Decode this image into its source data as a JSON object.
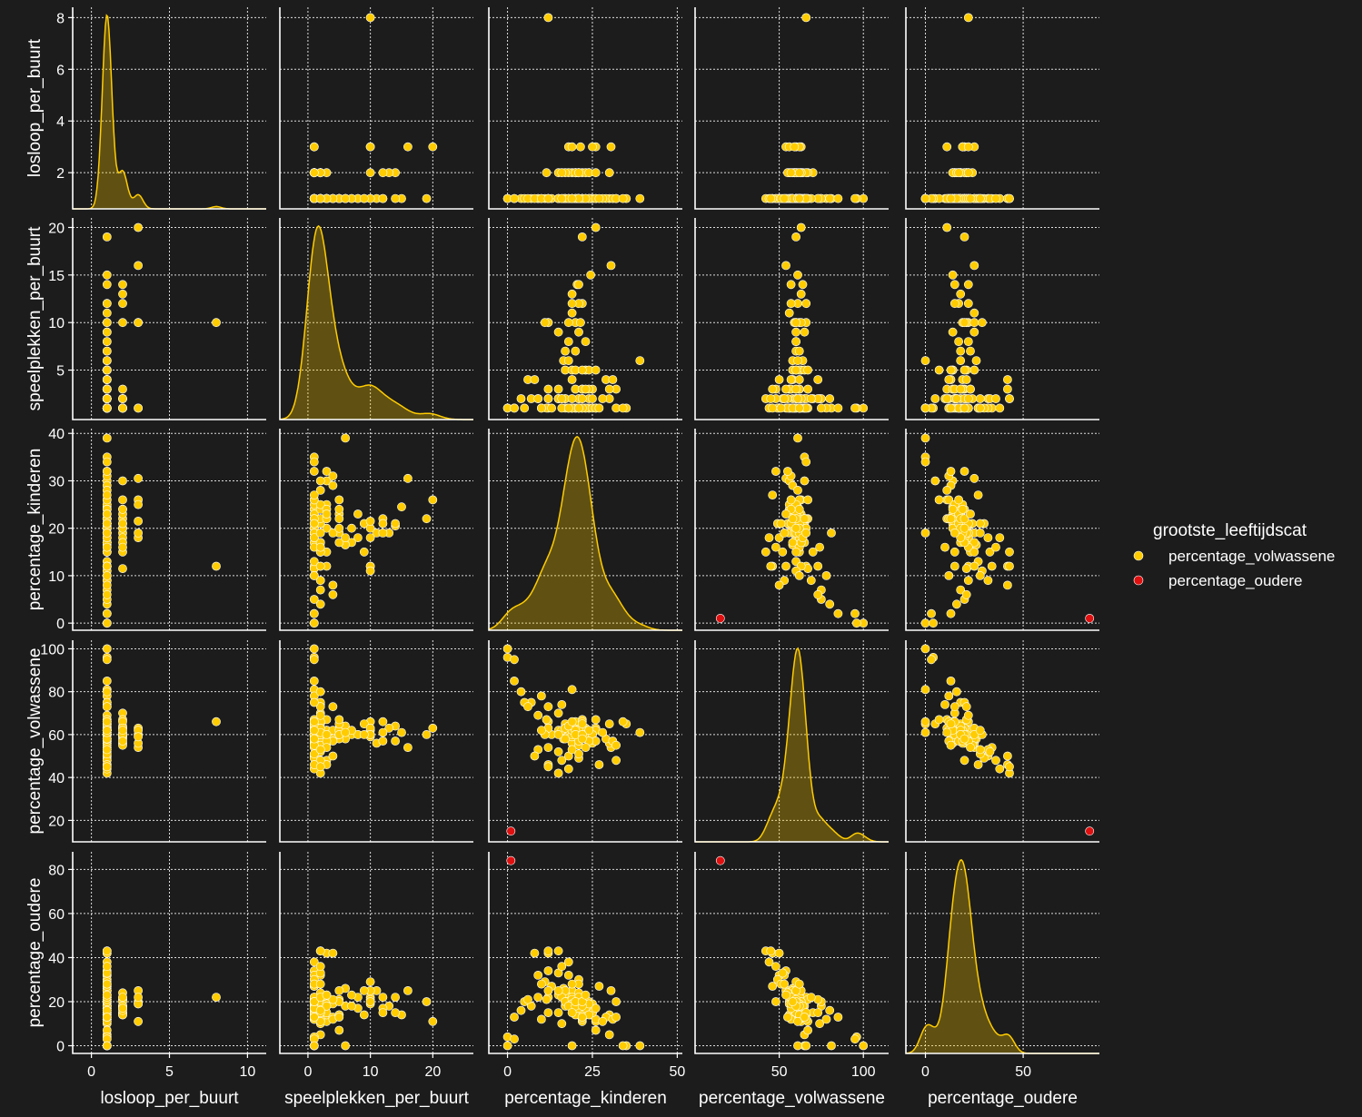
{
  "chart_data": {
    "type": "scatter",
    "kind": "pairplot",
    "variables": [
      "losloop_per_buurt",
      "speelplekken_per_buurt",
      "percentage_kinderen",
      "percentage_volwassene",
      "percentage_oudere"
    ],
    "ticks": {
      "losloop_per_buurt": [
        0,
        5,
        10
      ],
      "speelplekken_per_buurt": [
        0,
        10,
        20
      ],
      "percentage_kinderen": [
        0,
        25,
        50
      ],
      "percentage_volwassene": [
        50,
        100
      ],
      "percentage_oudere": [
        0,
        50
      ]
    },
    "row_ticks": {
      "losloop_per_buurt": [
        2,
        4,
        6,
        8
      ],
      "speelplekken_per_buurt": [
        5,
        10,
        15,
        20
      ],
      "percentage_kinderen": [
        0,
        10,
        20,
        30,
        40
      ],
      "percentage_volwassene": [
        20,
        40,
        60,
        80,
        100
      ],
      "percentage_oudere": [
        0,
        20,
        40,
        60,
        80
      ]
    },
    "ranges": {
      "losloop_per_buurt": [
        -1.2,
        11.2
      ],
      "speelplekken_per_buurt": [
        -4.5,
        26.5
      ],
      "percentage_kinderen": [
        -5.5,
        51.5
      ],
      "percentage_volwassene": [
        0,
        115
      ],
      "percentage_oudere": [
        -10,
        89
      ]
    },
    "row_ranges": {
      "losloop_per_buurt": [
        0.6,
        8.4
      ],
      "speelplekken_per_buurt": [
        -0.2,
        21.0
      ],
      "percentage_kinderen": [
        -1.5,
        41.0
      ],
      "percentage_volwassene": [
        10,
        104
      ],
      "percentage_oudere": [
        -3.5,
        88
      ]
    },
    "hue": "grootste_leeftijdscat",
    "legend_position": "right",
    "series": [
      {
        "name": "percentage_volwassene",
        "color": "#ffcc00",
        "points": [
          [
            8,
            10,
            12,
            66,
            22
          ],
          [
            3,
            20,
            26,
            63,
            11
          ],
          [
            3,
            16,
            30.5,
            54,
            25
          ],
          [
            1,
            19,
            22,
            60,
            20
          ],
          [
            1,
            15,
            24.5,
            61,
            14
          ],
          [
            1,
            14,
            20.5,
            57,
            22
          ],
          [
            1,
            11,
            19,
            56,
            25
          ],
          [
            1,
            9,
            21,
            65,
            14
          ],
          [
            1,
            8,
            18,
            60,
            22
          ],
          [
            1,
            7,
            17,
            60,
            23
          ],
          [
            1,
            6,
            16.5,
            58,
            26
          ],
          [
            1,
            5,
            23,
            63,
            14
          ],
          [
            1,
            3,
            20,
            62,
            18
          ],
          [
            1,
            2,
            21,
            58,
            21
          ],
          [
            1,
            1,
            22,
            62,
            16
          ],
          [
            1,
            1,
            12,
            54,
            34
          ],
          [
            1,
            2,
            9,
            53,
            32
          ],
          [
            1,
            3,
            32,
            48,
            20
          ],
          [
            1,
            1,
            0,
            100,
            0
          ],
          [
            1,
            1,
            19,
            81,
            0
          ],
          [
            1,
            2,
            16,
            74,
            10
          ],
          [
            1,
            1,
            17,
            65,
            18
          ],
          [
            1,
            1,
            20,
            63,
            17
          ],
          [
            1,
            1,
            23,
            62,
            15
          ],
          [
            1,
            1,
            24,
            56,
            20
          ],
          [
            1,
            1,
            18,
            50,
            32
          ],
          [
            1,
            1,
            21,
            49,
            30
          ],
          [
            1,
            2,
            15,
            52,
            33
          ],
          [
            1,
            3,
            22,
            67,
            11
          ],
          [
            2,
            14,
            21,
            64,
            15
          ],
          [
            2,
            13,
            19,
            63,
            18
          ],
          [
            2,
            12,
            22,
            61,
            17
          ],
          [
            2,
            10,
            20,
            59,
            21
          ],
          [
            2,
            3,
            30,
            56,
            14
          ],
          [
            2,
            2,
            15,
            70,
            15
          ],
          [
            2,
            1,
            11.5,
            67,
            21
          ],
          [
            2,
            1,
            18,
            60,
            22
          ],
          [
            2,
            1,
            24,
            58,
            18
          ],
          [
            2,
            1,
            20,
            66,
            14
          ],
          [
            2,
            2,
            17,
            63,
            20
          ],
          [
            2,
            1,
            23,
            59,
            18
          ],
          [
            3,
            10,
            21.5,
            60,
            19
          ],
          [
            3,
            10,
            18,
            62,
            20
          ],
          [
            3,
            1,
            25,
            56,
            19
          ],
          [
            3,
            1,
            19,
            59,
            22
          ],
          [
            1,
            2,
            22,
            62,
            16
          ],
          [
            1,
            1,
            13,
            60,
            27
          ],
          [
            2,
            2,
            24,
            60,
            16
          ],
          [
            1,
            1,
            19,
            64,
            17
          ],
          [
            1,
            3,
            25,
            60,
            15
          ],
          [
            1,
            2,
            30,
            65,
            5
          ],
          [
            1,
            1,
            10,
            78,
            12
          ],
          [
            1,
            5,
            17,
            58,
            25
          ],
          [
            2,
            2,
            21,
            55,
            24
          ],
          [
            1,
            2,
            7,
            75,
            18
          ],
          [
            1,
            4,
            29,
            58,
            13
          ],
          [
            1,
            3,
            15,
            62,
            23
          ],
          [
            1,
            2,
            22,
            66,
            12
          ],
          [
            1,
            1,
            26,
            62,
            12
          ],
          [
            2,
            1,
            16,
            62,
            22
          ],
          [
            1,
            10,
            12,
            63,
            25
          ],
          [
            1,
            10,
            11,
            60,
            29
          ],
          [
            1,
            12,
            21,
            57,
            22
          ],
          [
            1,
            4,
            31,
            57,
            12
          ],
          [
            1,
            8,
            23,
            60,
            17
          ],
          [
            1,
            2,
            25,
            60,
            15
          ],
          [
            2,
            1,
            26,
            57,
            17
          ],
          [
            1,
            1,
            21,
            62,
            17
          ],
          [
            1,
            2,
            17,
            63,
            20
          ],
          [
            1,
            5,
            19,
            60,
            21
          ],
          [
            1,
            3,
            24,
            57,
            19
          ],
          [
            1,
            4,
            19,
            62,
            19
          ],
          [
            1,
            5,
            24,
            62,
            14
          ],
          [
            1,
            6,
            18,
            64,
            18
          ],
          [
            1,
            7,
            20,
            62,
            18
          ],
          [
            1,
            5,
            20,
            60,
            20
          ],
          [
            1,
            9,
            15,
            60,
            25
          ],
          [
            1,
            12,
            19,
            66,
            15
          ],
          [
            1,
            2,
            28,
            61,
            11
          ],
          [
            1,
            3,
            22,
            60,
            18
          ],
          [
            1,
            5,
            22,
            65,
            13
          ],
          [
            1,
            1,
            32,
            55,
            13
          ],
          [
            1,
            1,
            22,
            58,
            20
          ],
          [
            1,
            2,
            12,
            73,
            15
          ],
          [
            1,
            2,
            4,
            80,
            16
          ],
          [
            1,
            1,
            5,
            75,
            20
          ],
          [
            1,
            1,
            2,
            85,
            13
          ],
          [
            1,
            4,
            6,
            73,
            21
          ],
          [
            1,
            2,
            9,
            69,
            22
          ],
          [
            1,
            5,
            26,
            67,
            7
          ],
          [
            1,
            1,
            35,
            65,
            0
          ],
          [
            1,
            2,
            15,
            42,
            43
          ],
          [
            1,
            3,
            12,
            46,
            42
          ],
          [
            1,
            1,
            18,
            44,
            38
          ],
          [
            1,
            4,
            8,
            50,
            42
          ],
          [
            1,
            3,
            23,
            54,
            23
          ],
          [
            1,
            1,
            0,
            96,
            4
          ],
          [
            1,
            1,
            2,
            95,
            3
          ],
          [
            1,
            6,
            39,
            61,
            0
          ],
          [
            1,
            1,
            34,
            66,
            0
          ],
          [
            1,
            2,
            16,
            48,
            36
          ],
          [
            1,
            1,
            27,
            46,
            27
          ],
          [
            1,
            1,
            10,
            62,
            28
          ],
          [
            1,
            2,
            12,
            45,
            43
          ],
          [
            1,
            1,
            21,
            51,
            28
          ],
          [
            1,
            2,
            19,
            53,
            28
          ]
        ]
      },
      {
        "name": "percentage_oudere",
        "color": "#e01010",
        "points": [
          [
            null,
            null,
            1,
            15,
            84
          ]
        ]
      }
    ]
  }
}
